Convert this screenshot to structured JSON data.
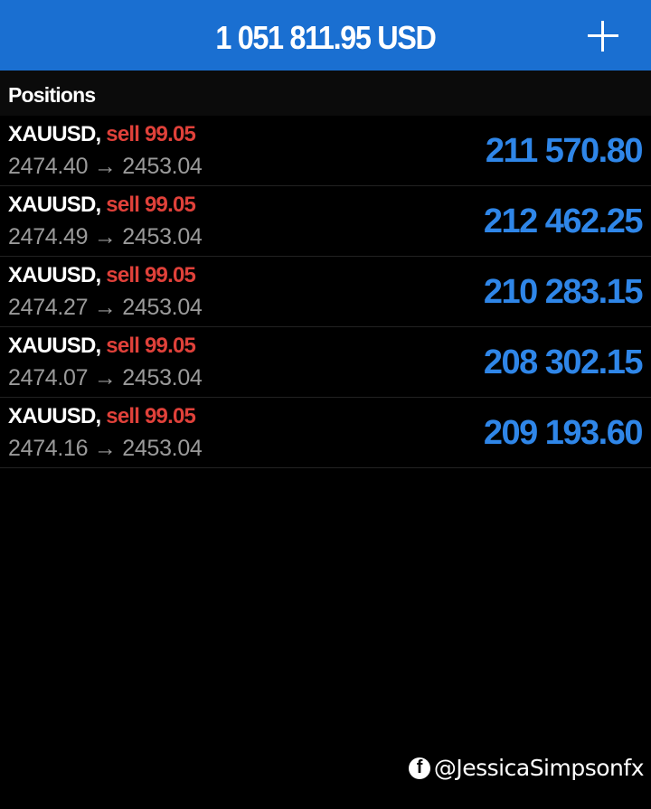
{
  "header": {
    "balance": "1 051 811.95 USD",
    "add_icon": "plus-icon"
  },
  "section_title": "Positions",
  "positions": [
    {
      "symbol": "XAUUSD,",
      "side": "sell 99.05",
      "prices": "2474.40 → 2453.04",
      "profit": "211 570.80"
    },
    {
      "symbol": "XAUUSD,",
      "side": "sell 99.05",
      "prices": "2474.49 → 2453.04",
      "profit": "212 462.25"
    },
    {
      "symbol": "XAUUSD,",
      "side": "sell 99.05",
      "prices": "2474.27 → 2453.04",
      "profit": "210 283.15"
    },
    {
      "symbol": "XAUUSD,",
      "side": "sell 99.05",
      "prices": "2474.07 → 2453.04",
      "profit": "208 302.15"
    },
    {
      "symbol": "XAUUSD,",
      "side": "sell 99.05",
      "prices": "2474.16 → 2453.04",
      "profit": "209 193.60"
    }
  ],
  "watermark": {
    "icon": "facebook-icon",
    "handle": "@JessicaSimpsonfx"
  },
  "colors": {
    "header": "#1a6fd1",
    "sell": "#e0413a",
    "profit": "#2f86e8"
  }
}
